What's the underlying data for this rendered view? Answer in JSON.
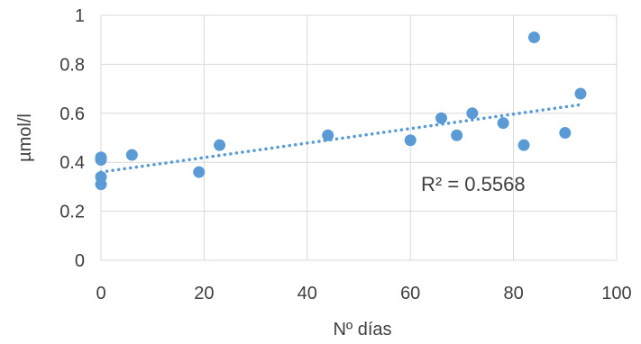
{
  "chart_data": {
    "type": "scatter",
    "title": "",
    "xlabel": "Nº días",
    "ylabel": "µmol/l",
    "xlim": [
      0,
      100
    ],
    "ylim": [
      0,
      1
    ],
    "grid": true,
    "x_ticks": [
      "0",
      "20",
      "40",
      "60",
      "80",
      "100"
    ],
    "y_ticks": [
      "0",
      "0.2",
      "0.4",
      "0.6",
      "0.8",
      "1"
    ],
    "series": [
      {
        "marker_color": "#5b9bd5",
        "points": [
          {
            "x": 0,
            "y": 0.42
          },
          {
            "x": 0,
            "y": 0.41
          },
          {
            "x": 0,
            "y": 0.34
          },
          {
            "x": 0,
            "y": 0.31
          },
          {
            "x": 6,
            "y": 0.43
          },
          {
            "x": 19,
            "y": 0.36
          },
          {
            "x": 23,
            "y": 0.47
          },
          {
            "x": 44,
            "y": 0.51
          },
          {
            "x": 60,
            "y": 0.49
          },
          {
            "x": 66,
            "y": 0.58
          },
          {
            "x": 69,
            "y": 0.51
          },
          {
            "x": 72,
            "y": 0.6
          },
          {
            "x": 78,
            "y": 0.56
          },
          {
            "x": 82,
            "y": 0.47
          },
          {
            "x": 84,
            "y": 0.91
          },
          {
            "x": 90,
            "y": 0.52
          },
          {
            "x": 93,
            "y": 0.68
          }
        ]
      }
    ],
    "trendline": {
      "style": "dotted",
      "color": "#5b9bd5",
      "x_range": [
        0,
        93
      ],
      "y_start": 0.36,
      "y_end": 0.635
    },
    "annotation": "R² = 0.5568"
  }
}
